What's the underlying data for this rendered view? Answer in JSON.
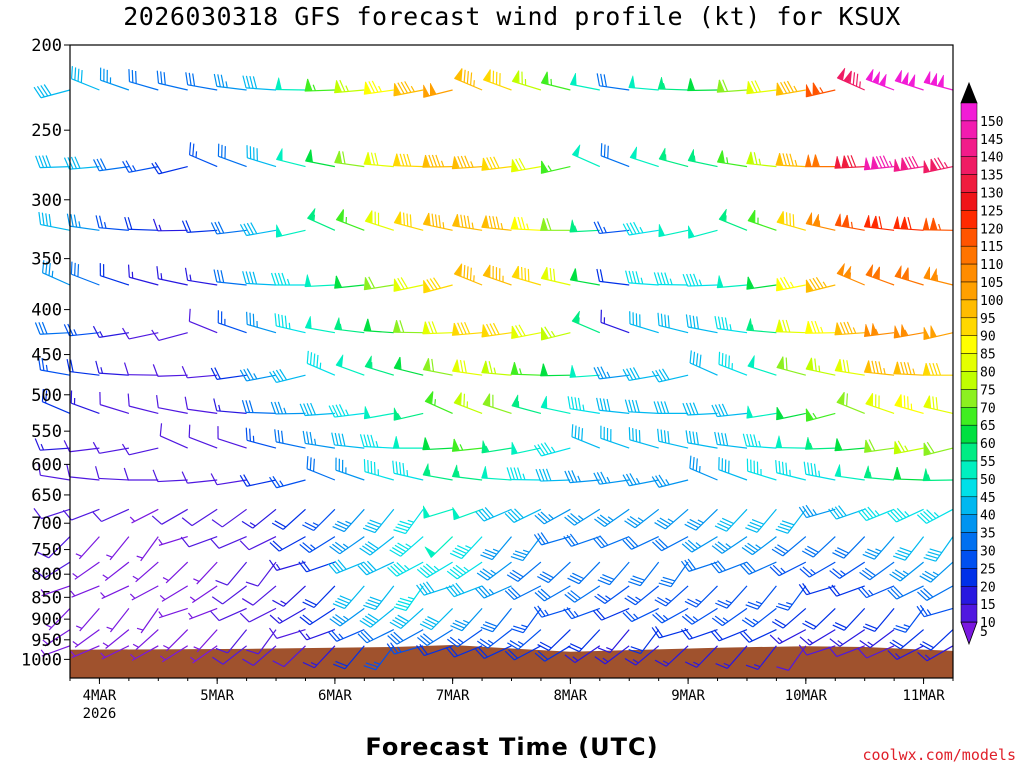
{
  "chart_data": {
    "type": "wind-barb-profile",
    "title": "2026030318 GFS forecast wind profile (kt) for KSUX",
    "xlabel": "Forecast Time (UTC)",
    "ylabel": "",
    "y_scale": "log-pressure",
    "y_ticks": [
      "200",
      "250",
      "300",
      "350",
      "400",
      "450",
      "500",
      "550",
      "600",
      "650",
      "700",
      "750",
      "800",
      "850",
      "900",
      "950",
      "1000"
    ],
    "ylim": [
      1050,
      200
    ],
    "x_ticks": [
      {
        "label": "4MAR",
        "sub": "2026",
        "day": 4
      },
      {
        "label": "5MAR",
        "sub": "",
        "day": 5
      },
      {
        "label": "6MAR",
        "sub": "",
        "day": 6
      },
      {
        "label": "7MAR",
        "sub": "",
        "day": 7
      },
      {
        "label": "8MAR",
        "sub": "",
        "day": 8
      },
      {
        "label": "9MAR",
        "sub": "",
        "day": 9
      },
      {
        "label": "10MAR",
        "sub": "",
        "day": 10
      },
      {
        "label": "11MAR",
        "sub": "",
        "day": 11
      }
    ],
    "xlim": [
      "2026-03-03 18Z",
      "2026-03-11 06Z"
    ],
    "colorbar": {
      "labels": [
        "150",
        "145",
        "140",
        "135",
        "130",
        "125",
        "120",
        "115",
        "110",
        "105",
        "100",
        "95",
        "90",
        "85",
        "80",
        "75",
        "70",
        "65",
        "60",
        "55",
        "50",
        "45",
        "40",
        "35",
        "30",
        "25",
        "20",
        "15",
        "10",
        "5"
      ],
      "colors": [
        "#f21cd6",
        "#f21cb0",
        "#f21c8a",
        "#ef1c64",
        "#ef1c3e",
        "#ef1418",
        "#ff2a00",
        "#ff5400",
        "#ff7400",
        "#ff8c00",
        "#ffa000",
        "#ffbc00",
        "#ffd800",
        "#ffff00",
        "#e4ff00",
        "#c0ff00",
        "#8cf020",
        "#40ee20",
        "#00e040",
        "#00ec84",
        "#00f0c0",
        "#00e0e8",
        "#00b8f0",
        "#0094f0",
        "#0070f0",
        "#0050f0",
        "#0030e8",
        "#2818e0",
        "#5018e0",
        "#7a18e0"
      ]
    },
    "terrain_pressure_hpa": [
      {
        "x": "2026-03-03 18Z",
        "p": 975
      },
      {
        "x": "2026-03-05 06Z",
        "p": 973
      },
      {
        "x": "2026-03-06 12Z",
        "p": 968
      },
      {
        "x": "2026-03-07 00Z",
        "p": 963
      },
      {
        "x": "2026-03-07 12Z",
        "p": 972
      },
      {
        "x": "2026-03-08 00Z",
        "p": 980
      },
      {
        "x": "2026-03-08 12Z",
        "p": 976
      },
      {
        "x": "2026-03-09 06Z",
        "p": 970
      },
      {
        "x": "2026-03-10 00Z",
        "p": 966
      },
      {
        "x": "2026-03-10 12Z",
        "p": 968
      },
      {
        "x": "2026-03-11 06Z",
        "p": 978
      }
    ],
    "wind_kt": [
      {
        "x": "2026-03-03 18Z",
        "speeds": [
          40,
          40,
          40,
          35,
          30,
          25,
          20,
          15,
          10,
          10,
          10,
          10,
          5,
          5,
          5,
          5
        ]
      },
      {
        "x": "2026-03-04 00Z",
        "speeds": [
          40,
          40,
          35,
          30,
          25,
          20,
          15,
          10,
          10,
          10,
          5,
          5,
          5,
          5,
          5,
          5
        ]
      },
      {
        "x": "2026-03-04 06Z",
        "speeds": [
          35,
          30,
          25,
          20,
          15,
          15,
          10,
          10,
          10,
          10,
          5,
          5,
          5,
          5,
          5,
          5
        ]
      },
      {
        "x": "2026-03-04 12Z",
        "speeds": [
          30,
          25,
          20,
          15,
          10,
          10,
          10,
          10,
          10,
          5,
          5,
          5,
          5,
          5,
          5,
          5
        ]
      },
      {
        "x": "2026-03-04 18Z",
        "speeds": [
          30,
          20,
          15,
          15,
          10,
          10,
          10,
          10,
          10,
          10,
          5,
          5,
          5,
          5,
          5,
          5
        ]
      },
      {
        "x": "2026-03-05 00Z",
        "speeds": [
          30,
          25,
          20,
          15,
          10,
          10,
          10,
          10,
          10,
          10,
          10,
          5,
          5,
          5,
          5,
          5
        ]
      },
      {
        "x": "2026-03-05 06Z",
        "speeds": [
          35,
          30,
          30,
          30,
          25,
          20,
          15,
          10,
          10,
          10,
          10,
          10,
          10,
          10,
          10,
          10
        ]
      },
      {
        "x": "2026-03-05 12Z",
        "speeds": [
          40,
          40,
          40,
          40,
          35,
          35,
          30,
          25,
          20,
          15,
          10,
          10,
          10,
          10,
          10,
          10
        ]
      },
      {
        "x": "2026-03-05 18Z",
        "speeds": [
          50,
          50,
          50,
          45,
          45,
          40,
          35,
          30,
          25,
          20,
          20,
          15,
          15,
          15,
          10,
          10
        ]
      },
      {
        "x": "2026-03-06 00Z",
        "speeds": [
          65,
          60,
          55,
          50,
          50,
          45,
          40,
          35,
          30,
          25,
          25,
          20,
          20,
          20,
          15,
          15
        ]
      },
      {
        "x": "2026-03-06 06Z",
        "speeds": [
          75,
          70,
          65,
          60,
          55,
          50,
          45,
          40,
          35,
          35,
          35,
          40,
          40,
          35,
          25,
          20
        ]
      },
      {
        "x": "2026-03-06 12Z",
        "speeds": [
          85,
          80,
          80,
          70,
          60,
          55,
          50,
          45,
          45,
          40,
          40,
          40,
          40,
          40,
          30,
          25
        ]
      },
      {
        "x": "2026-03-06 18Z",
        "speeds": [
          95,
          90,
          90,
          80,
          70,
          60,
          55,
          50,
          45,
          45,
          45,
          45,
          45,
          40,
          30,
          25
        ]
      },
      {
        "x": "2026-03-07 00Z",
        "speeds": [
          100,
          95,
          95,
          90,
          80,
          70,
          65,
          60,
          55,
          50,
          50,
          45,
          40,
          40,
          30,
          20
        ]
      },
      {
        "x": "2026-03-07 06Z",
        "speeds": [
          95,
          95,
          95,
          95,
          90,
          80,
          75,
          65,
          55,
          50,
          45,
          45,
          40,
          35,
          25,
          20
        ]
      },
      {
        "x": "2026-03-07 12Z",
        "speeds": [
          90,
          90,
          95,
          95,
          90,
          75,
          70,
          55,
          50,
          40,
          35,
          35,
          35,
          30,
          25,
          20
        ]
      },
      {
        "x": "2026-03-07 18Z",
        "speeds": [
          75,
          80,
          85,
          90,
          80,
          65,
          55,
          50,
          45,
          40,
          35,
          30,
          30,
          25,
          25,
          20
        ]
      },
      {
        "x": "2026-03-08 00Z",
        "speeds": [
          65,
          65,
          70,
          80,
          75,
          60,
          50,
          45,
          40,
          35,
          30,
          30,
          30,
          25,
          20,
          20
        ]
      },
      {
        "x": "2026-03-08 06Z",
        "speeds": [
          50,
          50,
          55,
          60,
          55,
          50,
          45,
          40,
          35,
          35,
          30,
          30,
          30,
          25,
          20,
          15
        ]
      },
      {
        "x": "2026-03-08 12Z",
        "speeds": [
          30,
          30,
          25,
          20,
          15,
          35,
          40,
          40,
          35,
          35,
          30,
          30,
          25,
          20,
          15,
          15
        ]
      },
      {
        "x": "2026-03-08 18Z",
        "speeds": [
          50,
          50,
          45,
          45,
          40,
          40,
          40,
          40,
          35,
          35,
          30,
          30,
          25,
          25,
          20,
          15
        ]
      },
      {
        "x": "2026-03-09 00Z",
        "speeds": [
          55,
          55,
          50,
          45,
          40,
          40,
          40,
          40,
          35,
          35,
          30,
          30,
          25,
          25,
          20,
          15
        ]
      },
      {
        "x": "2026-03-09 06Z",
        "speeds": [
          60,
          55,
          50,
          45,
          40,
          40,
          40,
          40,
          35,
          35,
          35,
          30,
          25,
          25,
          20,
          15
        ]
      },
      {
        "x": "2026-03-09 12Z",
        "speeds": [
          70,
          65,
          55,
          50,
          45,
          45,
          40,
          40,
          40,
          40,
          35,
          30,
          25,
          25,
          20,
          15
        ]
      },
      {
        "x": "2026-03-09 18Z",
        "speeds": [
          80,
          75,
          65,
          60,
          55,
          50,
          50,
          45,
          45,
          40,
          35,
          30,
          25,
          25,
          20,
          15
        ]
      },
      {
        "x": "2026-03-10 00Z",
        "speeds": [
          95,
          95,
          90,
          85,
          80,
          70,
          60,
          50,
          45,
          40,
          30,
          25,
          25,
          20,
          15,
          10
        ]
      },
      {
        "x": "2026-03-10 06Z",
        "speeds": [
          115,
          110,
          105,
          95,
          85,
          75,
          65,
          55,
          45,
          35,
          30,
          25,
          20,
          20,
          15,
          10
        ]
      },
      {
        "x": "2026-03-10 12Z",
        "speeds": [
          135,
          130,
          115,
          105,
          95,
          80,
          70,
          60,
          50,
          40,
          30,
          25,
          20,
          20,
          15,
          10
        ]
      },
      {
        "x": "2026-03-10 18Z",
        "speeds": [
          150,
          145,
          120,
          110,
          105,
          95,
          80,
          70,
          55,
          45,
          35,
          30,
          25,
          20,
          15,
          10
        ]
      },
      {
        "x": "2026-03-11 00Z",
        "speeds": [
          150,
          140,
          120,
          110,
          105,
          95,
          85,
          75,
          60,
          45,
          40,
          35,
          30,
          25,
          20,
          15
        ]
      },
      {
        "x": "2026-03-11 06Z",
        "speeds": [
          150,
          135,
          115,
          105,
          100,
          90,
          80,
          70,
          55,
          45,
          40,
          35,
          30,
          25,
          20,
          15
        ]
      }
    ]
  },
  "credit": "coolwx.com/models"
}
